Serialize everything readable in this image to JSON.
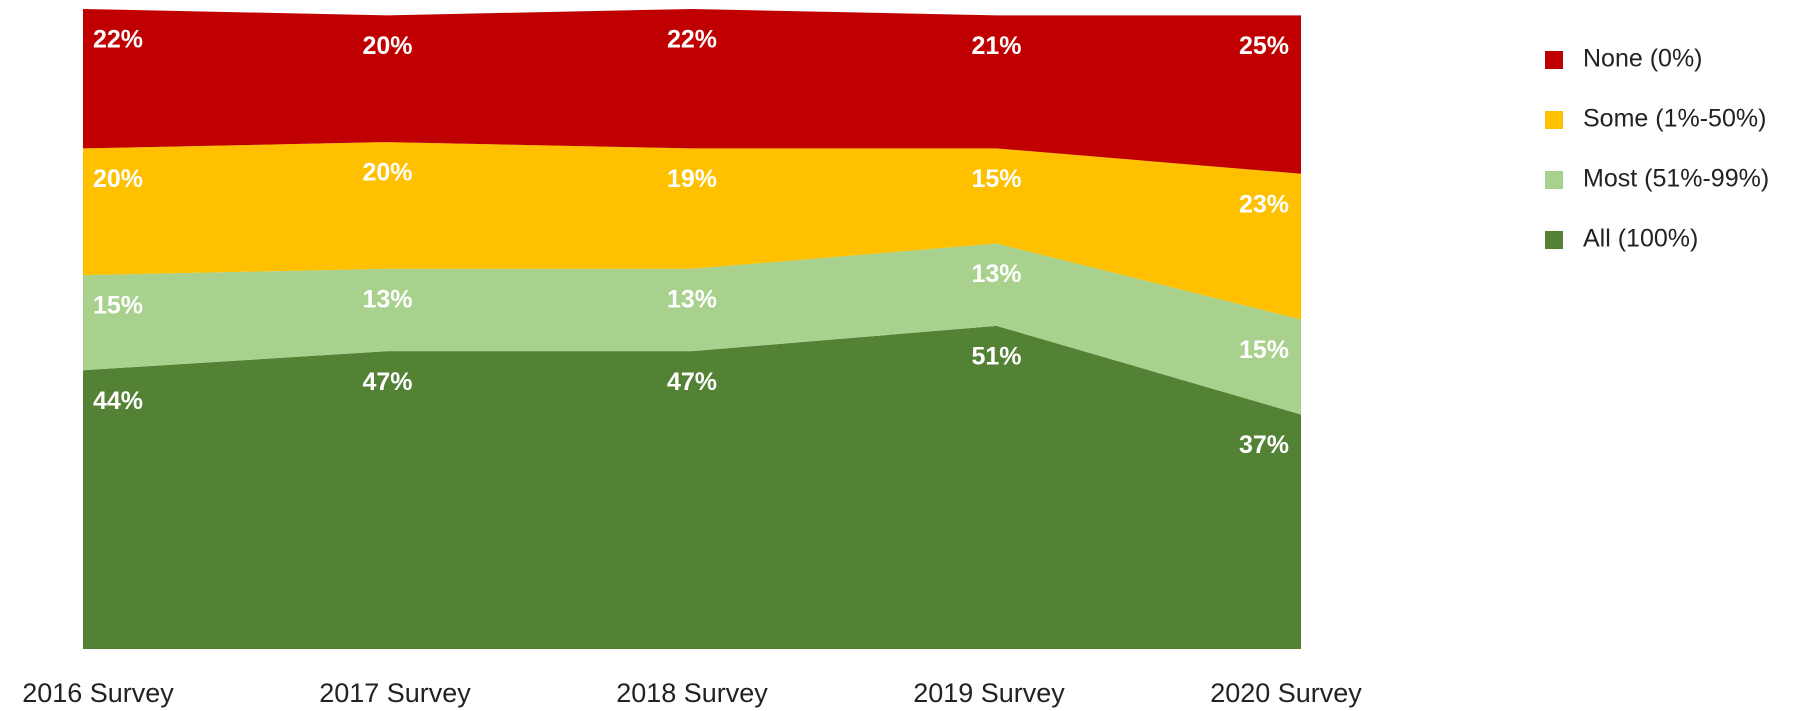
{
  "chart_data": {
    "type": "stacked_area",
    "categories": [
      "2016 Survey",
      "2017 Survey",
      "2018 Survey",
      "2019 Survey",
      "2020 Survey"
    ],
    "series": [
      {
        "name": "None (0%)",
        "color": "#c00000",
        "values": [
          22,
          20,
          22,
          21,
          25
        ],
        "value_labels": [
          "22%",
          "20%",
          "22%",
          "21%",
          "25%"
        ]
      },
      {
        "name": "Some (1%-50%)",
        "color": "#ffc000",
        "values": [
          20,
          20,
          19,
          15,
          23
        ],
        "value_labels": [
          "20%",
          "20%",
          "19%",
          "15%",
          "23%"
        ]
      },
      {
        "name": "Most (51%-99%)",
        "color": "#a9d18e",
        "values": [
          15,
          13,
          13,
          13,
          15
        ],
        "value_labels": [
          "15%",
          "13%",
          "13%",
          "13%",
          "15%"
        ]
      },
      {
        "name": "All (100%)",
        "color": "#548235",
        "values": [
          44,
          47,
          47,
          51,
          37
        ],
        "value_labels": [
          "44%",
          "47%",
          "47%",
          "51%",
          "37%"
        ]
      }
    ],
    "legend": "right"
  }
}
